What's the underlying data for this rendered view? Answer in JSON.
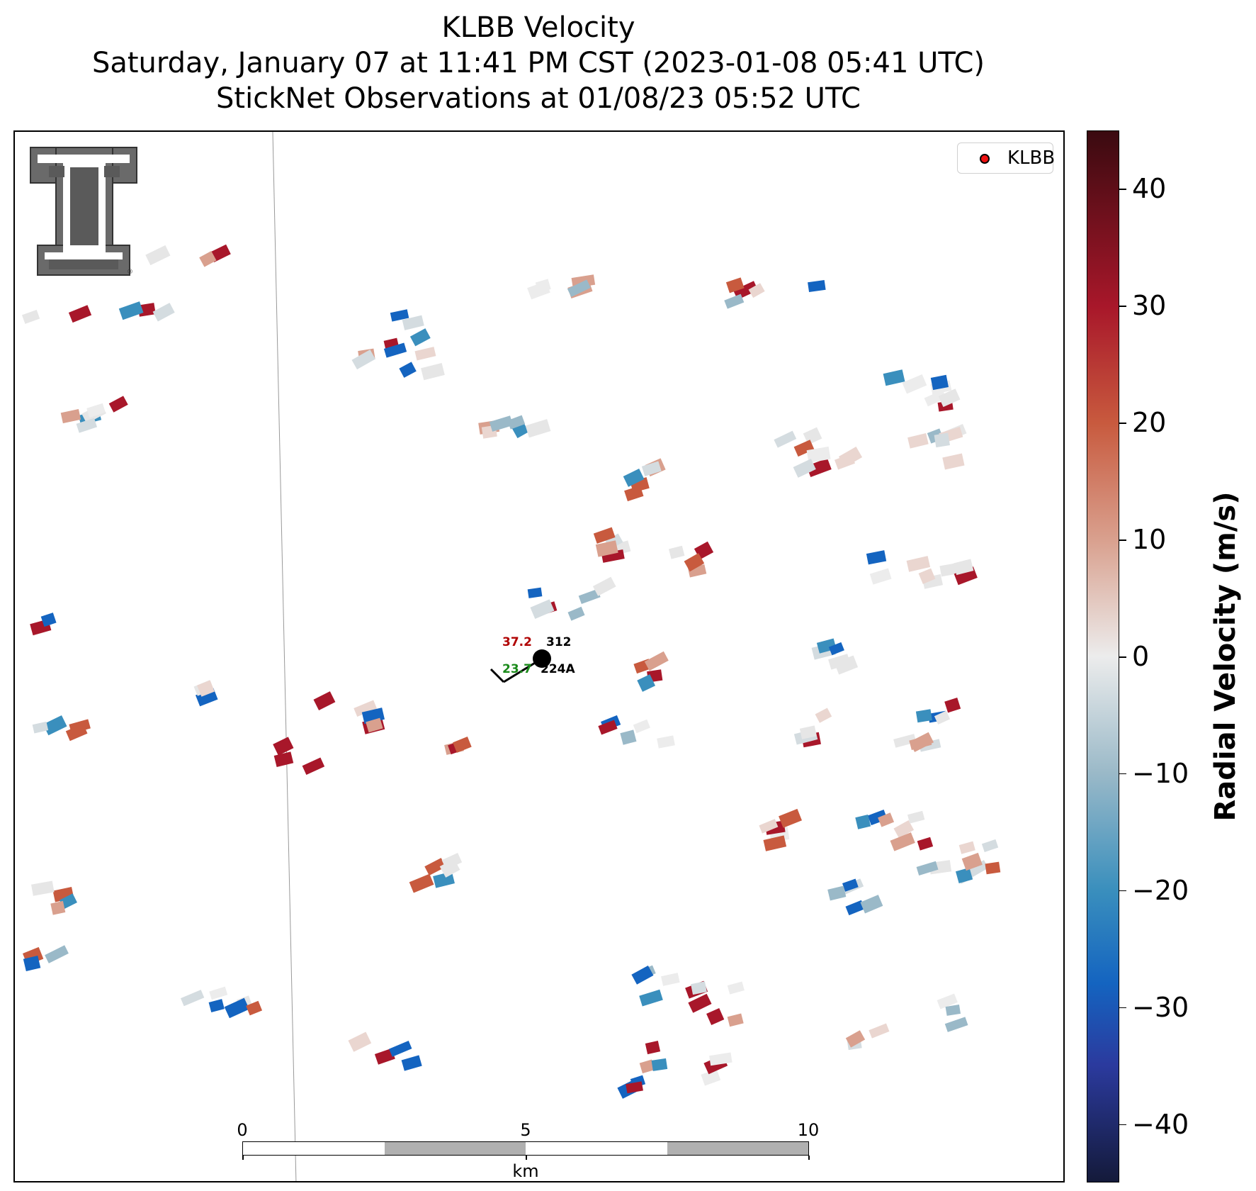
{
  "title": {
    "line1": "KLBB Velocity",
    "line2": "Saturday, January 07 at 11:41 PM CST (2023-01-08 05:41 UTC)",
    "line3": "StickNet Observations at 01/08/23 05:52 UTC"
  },
  "legend": {
    "label": "KLBB"
  },
  "station": {
    "temperature": "37.2",
    "dewpoint": "23.7",
    "pressure_code": "312",
    "station_id": "224A",
    "temperature_color": "#b00000",
    "dewpoint_color": "#1a8a1a"
  },
  "scale_bar": {
    "labels": [
      "0",
      "5",
      "10"
    ],
    "unit": "km"
  },
  "colorbar": {
    "title": "Radial Velocity (m/s)",
    "min": -45,
    "max": 45,
    "ticks": [
      "40",
      "30",
      "20",
      "10",
      "0",
      "−10",
      "−20",
      "−30",
      "−40"
    ],
    "colors": {
      "-45": "#141a3a",
      "-35": "#2b3a9e",
      "-28": "#1464c0",
      "-20": "#3a8fbd",
      "-10": "#9ab9c8",
      "0": "#ececec",
      "10": "#d9a08e",
      "20": "#c85a3e",
      "30": "#a8172a",
      "45": "#3a0a10"
    }
  },
  "icons": {
    "logo": "texas-tech-double-t-logo",
    "radar": "radar-site-marker"
  }
}
